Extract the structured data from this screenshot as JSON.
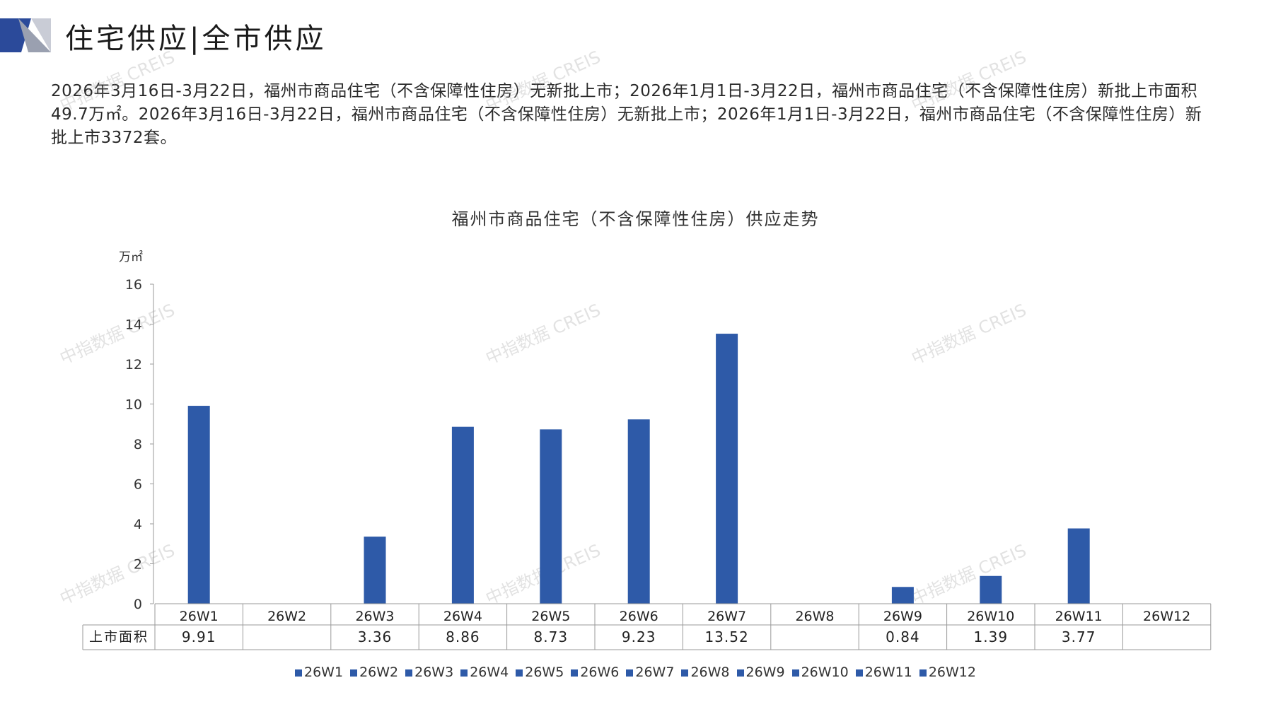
{
  "header": {
    "title": "住宅供应|全市供应"
  },
  "summary": "2026年3月16日-3月22日，福州市商品住宅（不含保障性住房）无新批上市；2026年1月1日-3月22日，福州市商品住宅（不含保障性住房）新批上市面积49.7万㎡。2026年3月16日-3月22日，福州市商品住宅（不含保障性住房）无新批上市；2026年1月1日-3月22日，福州市商品住宅（不含保障性住房）新批上市3372套。",
  "watermark": "中指数据 CREIS",
  "colors": {
    "bar": "#2e5aa8",
    "accent_dark": "#2b4a9a",
    "accent_gray": "#9aa0b0"
  },
  "chart_data": {
    "type": "bar",
    "title": "福州市商品住宅（不含保障性住房）供应走势",
    "ylabel": "万㎡",
    "ylim": [
      0,
      16
    ],
    "yticks": [
      0,
      2,
      4,
      6,
      8,
      10,
      12,
      14,
      16
    ],
    "categories": [
      "26W1",
      "26W2",
      "26W3",
      "26W4",
      "26W5",
      "26W6",
      "26W7",
      "26W8",
      "26W9",
      "26W10",
      "26W11",
      "26W12"
    ],
    "series": [
      {
        "name": "上市面积",
        "values": [
          9.91,
          null,
          3.36,
          8.86,
          8.73,
          9.23,
          13.52,
          null,
          0.84,
          1.39,
          3.77,
          null
        ],
        "labels": [
          "9.91",
          "",
          "3.36",
          "8.86",
          "8.73",
          "9.23",
          "13.52",
          "",
          "0.84",
          "1.39",
          "3.77",
          ""
        ]
      }
    ],
    "legend": [
      "26W1",
      "26W2",
      "26W3",
      "26W4",
      "26W5",
      "26W6",
      "26W7",
      "26W8",
      "26W9",
      "26W10",
      "26W11",
      "26W12"
    ],
    "legend_position": "bottom",
    "data_table": true,
    "grid": false
  }
}
